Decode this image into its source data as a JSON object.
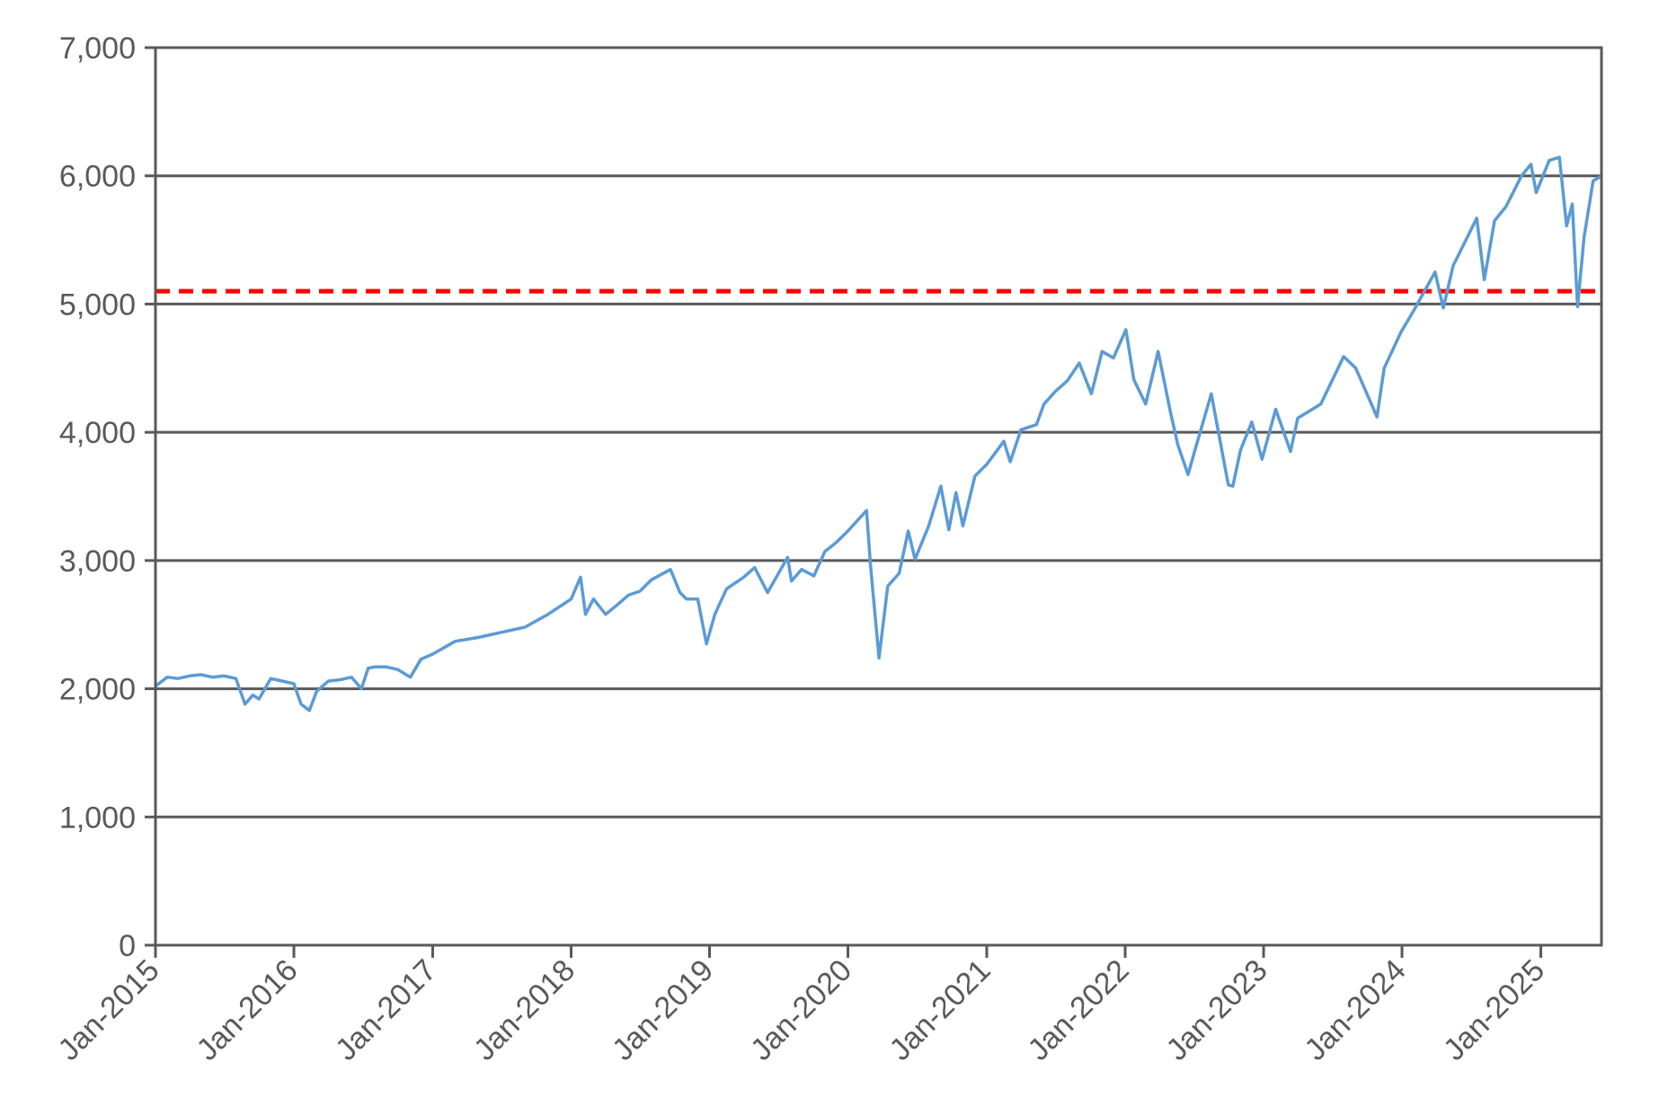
{
  "chart_data": {
    "type": "line",
    "title": "",
    "xlabel": "",
    "ylabel": "",
    "ylim": [
      0,
      7000
    ],
    "xlim": [
      "2015-01-01",
      "2025-06-10"
    ],
    "grid": "horizontal",
    "legend": "none",
    "y_ticks": [
      {
        "value": 0,
        "label": "0"
      },
      {
        "value": 1000,
        "label": "1,000"
      },
      {
        "value": 2000,
        "label": "2,000"
      },
      {
        "value": 3000,
        "label": "3,000"
      },
      {
        "value": 4000,
        "label": "4,000"
      },
      {
        "value": 5000,
        "label": "5,000"
      },
      {
        "value": 6000,
        "label": "6,000"
      },
      {
        "value": 7000,
        "label": "7,000"
      }
    ],
    "x_ticks": [
      {
        "date": "2015-01-01",
        "label": "Jan-2015"
      },
      {
        "date": "2016-01-01",
        "label": "Jan-2016"
      },
      {
        "date": "2017-01-01",
        "label": "Jan-2017"
      },
      {
        "date": "2018-01-01",
        "label": "Jan-2018"
      },
      {
        "date": "2019-01-01",
        "label": "Jan-2019"
      },
      {
        "date": "2020-01-01",
        "label": "Jan-2020"
      },
      {
        "date": "2021-01-01",
        "label": "Jan-2021"
      },
      {
        "date": "2022-01-01",
        "label": "Jan-2022"
      },
      {
        "date": "2023-01-01",
        "label": "Jan-2023"
      },
      {
        "date": "2024-01-01",
        "label": "Jan-2024"
      },
      {
        "date": "2025-01-01",
        "label": "Jan-2025"
      }
    ],
    "reference_line": {
      "value": 5100,
      "color": "#ff0000",
      "style": "dashed"
    },
    "series": [
      {
        "color": "#5b9bd5",
        "points": [
          [
            "2015-01-01",
            2020
          ],
          [
            "2015-02-01",
            2090
          ],
          [
            "2015-03-01",
            2080
          ],
          [
            "2015-04-01",
            2100
          ],
          [
            "2015-05-01",
            2110
          ],
          [
            "2015-06-01",
            2090
          ],
          [
            "2015-07-01",
            2100
          ],
          [
            "2015-08-01",
            2080
          ],
          [
            "2015-08-25",
            1880
          ],
          [
            "2015-09-15",
            1950
          ],
          [
            "2015-10-01",
            1920
          ],
          [
            "2015-11-01",
            2080
          ],
          [
            "2015-12-01",
            2060
          ],
          [
            "2016-01-01",
            2040
          ],
          [
            "2016-01-20",
            1880
          ],
          [
            "2016-02-11",
            1830
          ],
          [
            "2016-03-01",
            1980
          ],
          [
            "2016-04-01",
            2060
          ],
          [
            "2016-05-01",
            2070
          ],
          [
            "2016-06-01",
            2090
          ],
          [
            "2016-06-27",
            2000
          ],
          [
            "2016-07-15",
            2160
          ],
          [
            "2016-08-01",
            2170
          ],
          [
            "2016-09-01",
            2170
          ],
          [
            "2016-10-01",
            2150
          ],
          [
            "2016-11-03",
            2090
          ],
          [
            "2016-12-01",
            2230
          ],
          [
            "2017-01-01",
            2270
          ],
          [
            "2017-03-01",
            2370
          ],
          [
            "2017-05-01",
            2400
          ],
          [
            "2017-07-01",
            2440
          ],
          [
            "2017-09-01",
            2480
          ],
          [
            "2017-11-01",
            2580
          ],
          [
            "2018-01-01",
            2700
          ],
          [
            "2018-01-26",
            2870
          ],
          [
            "2018-02-08",
            2580
          ],
          [
            "2018-03-01",
            2700
          ],
          [
            "2018-04-02",
            2580
          ],
          [
            "2018-05-01",
            2650
          ],
          [
            "2018-06-01",
            2730
          ],
          [
            "2018-07-01",
            2760
          ],
          [
            "2018-08-01",
            2850
          ],
          [
            "2018-09-20",
            2930
          ],
          [
            "2018-10-15",
            2750
          ],
          [
            "2018-11-01",
            2700
          ],
          [
            "2018-12-01",
            2700
          ],
          [
            "2018-12-24",
            2350
          ],
          [
            "2019-01-15",
            2580
          ],
          [
            "2019-02-15",
            2780
          ],
          [
            "2019-04-01",
            2870
          ],
          [
            "2019-04-30",
            2945
          ],
          [
            "2019-06-03",
            2750
          ],
          [
            "2019-07-26",
            3025
          ],
          [
            "2019-08-05",
            2840
          ],
          [
            "2019-09-01",
            2930
          ],
          [
            "2019-10-03",
            2880
          ],
          [
            "2019-11-01",
            3070
          ],
          [
            "2019-12-01",
            3140
          ],
          [
            "2020-01-01",
            3230
          ],
          [
            "2020-02-19",
            3390
          ],
          [
            "2020-03-01",
            2950
          ],
          [
            "2020-03-23",
            2240
          ],
          [
            "2020-04-15",
            2800
          ],
          [
            "2020-05-15",
            2900
          ],
          [
            "2020-06-08",
            3230
          ],
          [
            "2020-06-26",
            3010
          ],
          [
            "2020-08-01",
            3270
          ],
          [
            "2020-09-02",
            3580
          ],
          [
            "2020-09-23",
            3240
          ],
          [
            "2020-10-12",
            3530
          ],
          [
            "2020-10-30",
            3270
          ],
          [
            "2020-12-01",
            3660
          ],
          [
            "2021-01-01",
            3750
          ],
          [
            "2021-02-15",
            3930
          ],
          [
            "2021-03-04",
            3770
          ],
          [
            "2021-04-01",
            4020
          ],
          [
            "2021-05-12",
            4060
          ],
          [
            "2021-06-01",
            4220
          ],
          [
            "2021-07-01",
            4320
          ],
          [
            "2021-08-01",
            4400
          ],
          [
            "2021-09-02",
            4540
          ],
          [
            "2021-10-04",
            4300
          ],
          [
            "2021-11-01",
            4630
          ],
          [
            "2021-12-01",
            4580
          ],
          [
            "2022-01-03",
            4800
          ],
          [
            "2022-01-24",
            4410
          ],
          [
            "2022-02-24",
            4220
          ],
          [
            "2022-03-29",
            4630
          ],
          [
            "2022-05-01",
            4150
          ],
          [
            "2022-05-20",
            3900
          ],
          [
            "2022-06-16",
            3670
          ],
          [
            "2022-07-01",
            3830
          ],
          [
            "2022-08-16",
            4300
          ],
          [
            "2022-09-30",
            3590
          ],
          [
            "2022-10-12",
            3580
          ],
          [
            "2022-11-01",
            3860
          ],
          [
            "2022-12-01",
            4080
          ],
          [
            "2022-12-28",
            3790
          ],
          [
            "2023-02-02",
            4180
          ],
          [
            "2023-03-13",
            3850
          ],
          [
            "2023-04-01",
            4110
          ],
          [
            "2023-06-01",
            4220
          ],
          [
            "2023-07-31",
            4590
          ],
          [
            "2023-09-01",
            4500
          ],
          [
            "2023-10-27",
            4120
          ],
          [
            "2023-11-15",
            4500
          ],
          [
            "2023-12-29",
            4780
          ],
          [
            "2024-02-01",
            4950
          ],
          [
            "2024-03-28",
            5250
          ],
          [
            "2024-04-19",
            4970
          ],
          [
            "2024-05-15",
            5300
          ],
          [
            "2024-07-16",
            5670
          ],
          [
            "2024-08-05",
            5190
          ],
          [
            "2024-09-01",
            5650
          ],
          [
            "2024-10-01",
            5760
          ],
          [
            "2024-11-11",
            6000
          ],
          [
            "2024-12-06",
            6090
          ],
          [
            "2024-12-20",
            5870
          ],
          [
            "2025-01-23",
            6120
          ],
          [
            "2025-02-19",
            6145
          ],
          [
            "2025-03-10",
            5610
          ],
          [
            "2025-03-25",
            5780
          ],
          [
            "2025-04-08",
            4980
          ],
          [
            "2025-04-25",
            5520
          ],
          [
            "2025-05-19",
            5960
          ],
          [
            "2025-06-10",
            6000
          ]
        ]
      }
    ]
  }
}
